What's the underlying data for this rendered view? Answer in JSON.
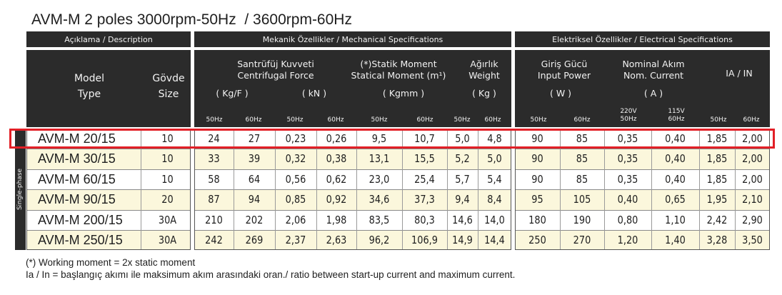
{
  "title": "AVM-M 2 poles 3000rpm-50Hz  / 3600rpm-60Hz",
  "headers": {
    "description": "Açıklama / Description",
    "mechanical": "Mekanik Özellikler / Mechanical Specifications",
    "electrical": "Elektriksel Özellikler / Electrical Specifications",
    "model_l1": "Model",
    "model_l2": "Type",
    "body_l1": "Gövde",
    "body_l2": "Size",
    "cf_l1": "Santrüfüj  Kuvveti",
    "cf_l2": "Centrifugal Force",
    "cf_unit1": "( Kg/F )",
    "cf_unit2": "( kN )",
    "sm_l1": "(*)Statik Moment",
    "sm_l2": "Statical Moment (m¹)",
    "sm_unit": "( Kgmm )",
    "w_l1": "Ağırlık",
    "w_l2": "Weight",
    "w_unit": "( Kg )",
    "ip_l1": "Giriş Gücü",
    "ip_l2": "Input Power",
    "ip_unit": "( W )",
    "nc_l1": "Nominal Akım",
    "nc_l2": "Nom. Current",
    "nc_unit": "( A )",
    "ia": "IA / IN"
  },
  "freq": {
    "hz50": "50Hz",
    "hz60": "60Hz",
    "v220": "220V",
    "v115": "115V"
  },
  "side_label": "Single-phase",
  "rows": [
    {
      "model": "AVM-M 20/15",
      "size": "10",
      "cf_kgf_50": "24",
      "cf_kgf_60": "27",
      "cf_kn_50": "0,23",
      "cf_kn_60": "0,26",
      "sm_50": "9,5",
      "sm_60": "10,7",
      "w_50": "5,0",
      "w_60": "4,8",
      "p_50": "90",
      "p_60": "85",
      "i_220": "0,35",
      "i_115": "0,40",
      "ia_50": "1,85",
      "ia_60": "2,00"
    },
    {
      "model": "AVM-M 30/15",
      "size": "10",
      "cf_kgf_50": "33",
      "cf_kgf_60": "39",
      "cf_kn_50": "0,32",
      "cf_kn_60": "0,38",
      "sm_50": "13,1",
      "sm_60": "15,5",
      "w_50": "5,2",
      "w_60": "5,0",
      "p_50": "90",
      "p_60": "85",
      "i_220": "0,35",
      "i_115": "0,40",
      "ia_50": "1,85",
      "ia_60": "2,00"
    },
    {
      "model": "AVM-M 60/15",
      "size": "10",
      "cf_kgf_50": "58",
      "cf_kgf_60": "64",
      "cf_kn_50": "0,56",
      "cf_kn_60": "0,62",
      "sm_50": "23,0",
      "sm_60": "25,4",
      "w_50": "5,7",
      "w_60": "5,4",
      "p_50": "90",
      "p_60": "85",
      "i_220": "0,35",
      "i_115": "0,40",
      "ia_50": "1,85",
      "ia_60": "2,00"
    },
    {
      "model": "AVM-M 90/15",
      "size": "20",
      "cf_kgf_50": "87",
      "cf_kgf_60": "94",
      "cf_kn_50": "0,85",
      "cf_kn_60": "0,92",
      "sm_50": "34,6",
      "sm_60": "37,3",
      "w_50": "9,4",
      "w_60": "8,4",
      "p_50": "95",
      "p_60": "105",
      "i_220": "0,40",
      "i_115": "0,65",
      "ia_50": "1,95",
      "ia_60": "2,10"
    },
    {
      "model": "AVM-M 200/15",
      "size": "30A",
      "cf_kgf_50": "210",
      "cf_kgf_60": "202",
      "cf_kn_50": "2,06",
      "cf_kn_60": "1,98",
      "sm_50": "83,5",
      "sm_60": "80,3",
      "w_50": "14,6",
      "w_60": "14,0",
      "p_50": "180",
      "p_60": "190",
      "i_220": "0,80",
      "i_115": "1,10",
      "ia_50": "2,42",
      "ia_60": "2,90"
    },
    {
      "model": "AVM-M 250/15",
      "size": "30A",
      "cf_kgf_50": "242",
      "cf_kgf_60": "269",
      "cf_kn_50": "2,37",
      "cf_kn_60": "2,63",
      "sm_50": "96,2",
      "sm_60": "106,9",
      "w_50": "14,9",
      "w_60": "14,4",
      "p_50": "250",
      "p_60": "270",
      "i_220": "1,20",
      "i_115": "1,40",
      "ia_50": "3,28",
      "ia_60": "3,50"
    }
  ],
  "footnotes": {
    "line1": "(*) Working moment = 2x static moment",
    "line2": "Ia / In = başlangıç akımı ile maksimum akım arasındaki oran./ ratio between start-up current and maximum current."
  },
  "colors": {
    "header_bg": "#2b2b2b",
    "row_tint": "#fbf7dc",
    "highlight": "#e21f26"
  }
}
